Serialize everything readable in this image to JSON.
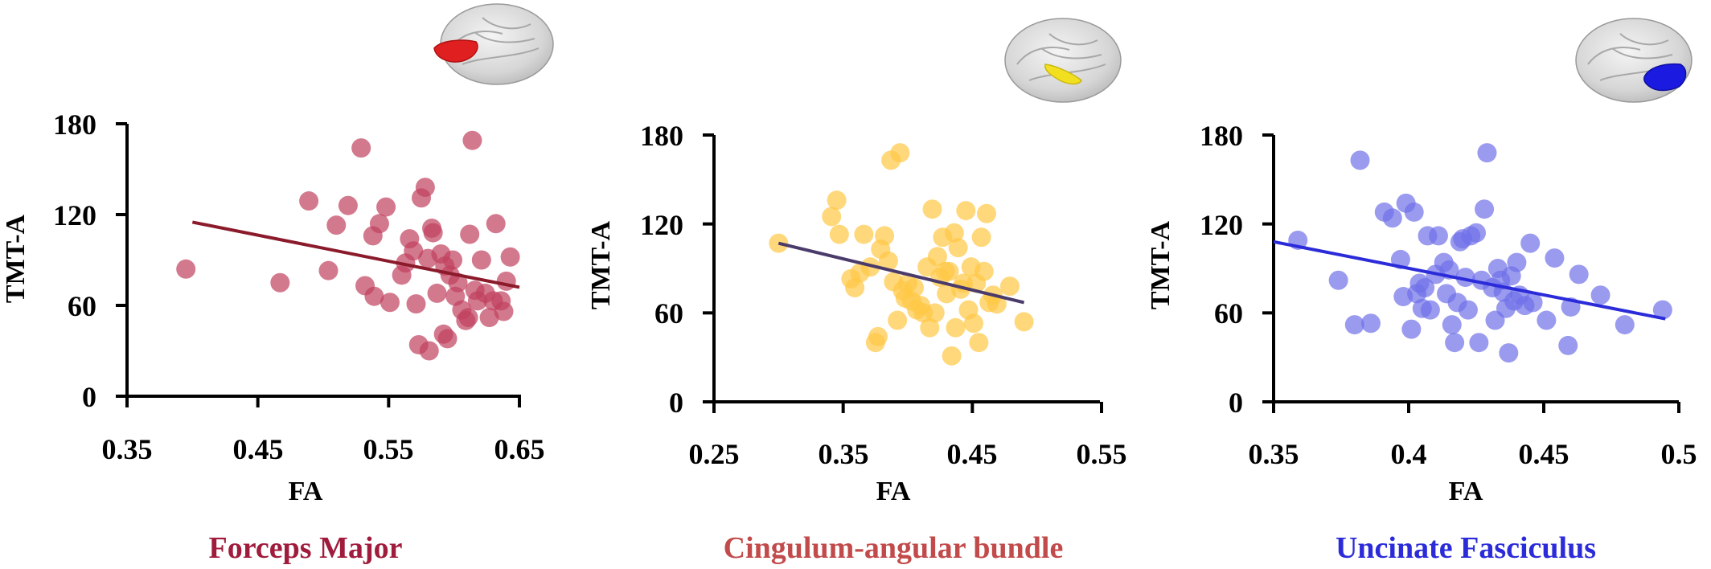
{
  "chart_data": [
    {
      "type": "scatter",
      "caption": "Forceps Major",
      "xlabel": "FA",
      "ylabel": "TMT-A",
      "xlim": [
        0.35,
        0.65
      ],
      "ylim": [
        0,
        180
      ],
      "x_ticks": [
        "0.35",
        "0.45",
        "0.55",
        "0.65"
      ],
      "y_ticks": [
        "0",
        "60",
        "120",
        "180"
      ],
      "point_color": "#c0405e",
      "line_color": "#8b1a2b",
      "caption_color": "#a01c3c",
      "brain_icon": "brain-forceps-major-red",
      "fit_line": [
        [
          0.4,
          115
        ],
        [
          0.65,
          72
        ]
      ],
      "points": [
        [
          0.395,
          84
        ],
        [
          0.467,
          75
        ],
        [
          0.489,
          129
        ],
        [
          0.504,
          83
        ],
        [
          0.51,
          113
        ],
        [
          0.519,
          126
        ],
        [
          0.529,
          164
        ],
        [
          0.532,
          73
        ],
        [
          0.538,
          106
        ],
        [
          0.539,
          66
        ],
        [
          0.543,
          114
        ],
        [
          0.548,
          125
        ],
        [
          0.551,
          62
        ],
        [
          0.56,
          80
        ],
        [
          0.563,
          88
        ],
        [
          0.566,
          104
        ],
        [
          0.569,
          96
        ],
        [
          0.571,
          61
        ],
        [
          0.573,
          34
        ],
        [
          0.575,
          131
        ],
        [
          0.578,
          138
        ],
        [
          0.58,
          91
        ],
        [
          0.581,
          30
        ],
        [
          0.583,
          111
        ],
        [
          0.584,
          108
        ],
        [
          0.587,
          68
        ],
        [
          0.59,
          94
        ],
        [
          0.592,
          41
        ],
        [
          0.593,
          86
        ],
        [
          0.595,
          38
        ],
        [
          0.597,
          80
        ],
        [
          0.599,
          90
        ],
        [
          0.601,
          66
        ],
        [
          0.603,
          75
        ],
        [
          0.606,
          57
        ],
        [
          0.609,
          50
        ],
        [
          0.611,
          52
        ],
        [
          0.612,
          107
        ],
        [
          0.614,
          169
        ],
        [
          0.616,
          70
        ],
        [
          0.618,
          63
        ],
        [
          0.621,
          90
        ],
        [
          0.624,
          68
        ],
        [
          0.627,
          52
        ],
        [
          0.63,
          63
        ],
        [
          0.632,
          114
        ],
        [
          0.636,
          63
        ],
        [
          0.638,
          56
        ],
        [
          0.64,
          76
        ],
        [
          0.643,
          92
        ]
      ]
    },
    {
      "type": "scatter",
      "caption": "Cingulum-angular bundle",
      "xlabel": "FA",
      "ylabel": "TMT-A",
      "xlim": [
        0.25,
        0.55
      ],
      "ylim": [
        0,
        180
      ],
      "x_ticks": [
        "0.25",
        "0.35",
        "0.45",
        "0.55"
      ],
      "y_ticks": [
        "0",
        "60",
        "120",
        "180"
      ],
      "point_color": "#ffc845",
      "line_color": "#4a3b6b",
      "caption_color": "#c24a4a",
      "brain_icon": "brain-cingulum-angular-yellow",
      "fit_line": [
        [
          0.3,
          107
        ],
        [
          0.49,
          67
        ]
      ],
      "points": [
        [
          0.3,
          107
        ],
        [
          0.341,
          125
        ],
        [
          0.345,
          136
        ],
        [
          0.347,
          113
        ],
        [
          0.356,
          83
        ],
        [
          0.359,
          77
        ],
        [
          0.363,
          87
        ],
        [
          0.366,
          113
        ],
        [
          0.371,
          91
        ],
        [
          0.375,
          40
        ],
        [
          0.377,
          44
        ],
        [
          0.379,
          103
        ],
        [
          0.382,
          112
        ],
        [
          0.385,
          95
        ],
        [
          0.387,
          163
        ],
        [
          0.389,
          81
        ],
        [
          0.392,
          55
        ],
        [
          0.394,
          168
        ],
        [
          0.396,
          75
        ],
        [
          0.398,
          70
        ],
        [
          0.4,
          80
        ],
        [
          0.403,
          68
        ],
        [
          0.405,
          77
        ],
        [
          0.407,
          62
        ],
        [
          0.41,
          65
        ],
        [
          0.412,
          60
        ],
        [
          0.415,
          91
        ],
        [
          0.417,
          50
        ],
        [
          0.419,
          130
        ],
        [
          0.421,
          60
        ],
        [
          0.423,
          98
        ],
        [
          0.425,
          84
        ],
        [
          0.427,
          111
        ],
        [
          0.429,
          88
        ],
        [
          0.43,
          73
        ],
        [
          0.432,
          88
        ],
        [
          0.434,
          31
        ],
        [
          0.436,
          114
        ],
        [
          0.437,
          50
        ],
        [
          0.439,
          104
        ],
        [
          0.441,
          76
        ],
        [
          0.443,
          80
        ],
        [
          0.445,
          129
        ],
        [
          0.447,
          62
        ],
        [
          0.449,
          91
        ],
        [
          0.451,
          53
        ],
        [
          0.453,
          80
        ],
        [
          0.455,
          40
        ],
        [
          0.457,
          111
        ],
        [
          0.459,
          88
        ],
        [
          0.461,
          127
        ],
        [
          0.463,
          67
        ],
        [
          0.466,
          72
        ],
        [
          0.469,
          66
        ],
        [
          0.479,
          78
        ],
        [
          0.49,
          54
        ]
      ]
    },
    {
      "type": "scatter",
      "caption": "Uncinate Fasciculus",
      "xlabel": "FA",
      "ylabel": "TMT-A",
      "xlim": [
        0.35,
        0.5
      ],
      "ylim": [
        0,
        180
      ],
      "x_ticks": [
        "0.35",
        "0.4",
        "0.45",
        "0.5"
      ],
      "y_ticks": [
        "0",
        "60",
        "120",
        "180"
      ],
      "point_color": "#6f70e8",
      "line_color": "#2b2bd9",
      "caption_color": "#2b2bd9",
      "brain_icon": "brain-uncinate-fasciculus-blue",
      "fit_line": [
        [
          0.35,
          108
        ],
        [
          0.495,
          56
        ]
      ],
      "points": [
        [
          0.359,
          109
        ],
        [
          0.374,
          82
        ],
        [
          0.38,
          52
        ],
        [
          0.382,
          163
        ],
        [
          0.386,
          53
        ],
        [
          0.391,
          128
        ],
        [
          0.394,
          124
        ],
        [
          0.397,
          96
        ],
        [
          0.398,
          71
        ],
        [
          0.399,
          134
        ],
        [
          0.401,
          49
        ],
        [
          0.402,
          128
        ],
        [
          0.403,
          73
        ],
        [
          0.404,
          80
        ],
        [
          0.405,
          63
        ],
        [
          0.406,
          77
        ],
        [
          0.407,
          112
        ],
        [
          0.408,
          62
        ],
        [
          0.41,
          86
        ],
        [
          0.411,
          112
        ],
        [
          0.413,
          94
        ],
        [
          0.414,
          73
        ],
        [
          0.415,
          89
        ],
        [
          0.416,
          52
        ],
        [
          0.417,
          40
        ],
        [
          0.418,
          67
        ],
        [
          0.419,
          108
        ],
        [
          0.42,
          110
        ],
        [
          0.421,
          84
        ],
        [
          0.422,
          62
        ],
        [
          0.423,
          112
        ],
        [
          0.425,
          114
        ],
        [
          0.426,
          40
        ],
        [
          0.427,
          82
        ],
        [
          0.428,
          130
        ],
        [
          0.429,
          168
        ],
        [
          0.431,
          77
        ],
        [
          0.432,
          55
        ],
        [
          0.433,
          90
        ],
        [
          0.434,
          82
        ],
        [
          0.435,
          74
        ],
        [
          0.436,
          63
        ],
        [
          0.437,
          33
        ],
        [
          0.438,
          85
        ],
        [
          0.439,
          68
        ],
        [
          0.44,
          94
        ],
        [
          0.441,
          72
        ],
        [
          0.443,
          65
        ],
        [
          0.445,
          107
        ],
        [
          0.446,
          67
        ],
        [
          0.451,
          55
        ],
        [
          0.454,
          97
        ],
        [
          0.459,
          38
        ],
        [
          0.46,
          64
        ],
        [
          0.463,
          86
        ],
        [
          0.471,
          72
        ],
        [
          0.48,
          52
        ],
        [
          0.494,
          62
        ]
      ]
    }
  ]
}
